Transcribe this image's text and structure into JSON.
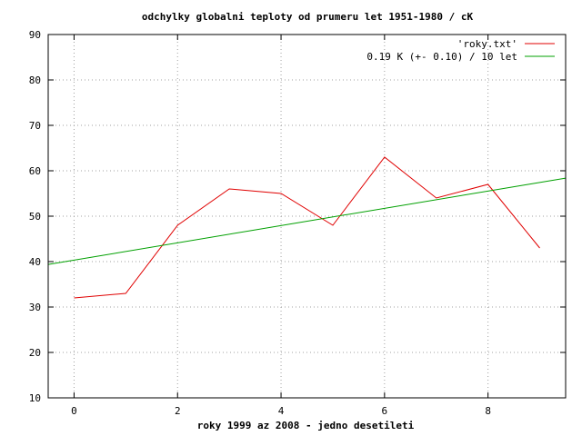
{
  "chart_data": {
    "type": "line",
    "title": "odchylky globalni teploty od prumeru let 1951-1980 / cK",
    "xlabel": "roky 1999 az 2008 - jedno desetileti",
    "ylabel": "",
    "xlim": [
      -0.5,
      9.5
    ],
    "ylim": [
      10,
      90
    ],
    "xticks": [
      0,
      2,
      4,
      6,
      8
    ],
    "yticks": [
      10,
      20,
      30,
      40,
      50,
      60,
      70,
      80,
      90
    ],
    "grid": true,
    "legend_position": "top-right",
    "series": [
      {
        "name": "'roky.txt'",
        "color": "#e00000",
        "kind": "data",
        "x": [
          0,
          1,
          2,
          3,
          4,
          5,
          6,
          7,
          8,
          9
        ],
        "y": [
          32,
          33,
          48,
          56,
          55,
          48,
          63,
          54,
          57,
          43
        ]
      },
      {
        "name": "0.19 K (+- 0.10) / 10 let",
        "color": "#00a000",
        "kind": "fit",
        "slope": 1.9,
        "intercept": 40.33
      }
    ]
  }
}
